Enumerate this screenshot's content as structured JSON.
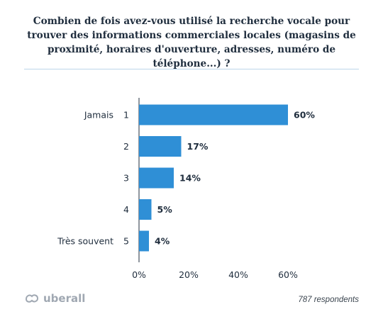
{
  "title": "Combien de fois avez-vous utilisé la recherche vocale pour trouver des informations commerciales locales (magasins de proximité, horaires d'ouverture, adresses, numéro de téléphone...) ?",
  "brand": {
    "name": "uberall",
    "icon": "uberall-logo-icon"
  },
  "footnote": "787 respondents",
  "colors": {
    "bar": "#2f8fd6",
    "axis": "#1f2d3d",
    "divider": "#bcd6ea"
  },
  "chart_data": {
    "type": "bar",
    "orientation": "horizontal",
    "categories": [
      "1",
      "2",
      "3",
      "4",
      "5"
    ],
    "category_descriptions": [
      "Jamais",
      "",
      "",
      "",
      "Très souvent"
    ],
    "values": [
      60,
      17,
      14,
      5,
      4
    ],
    "value_labels": [
      "60%",
      "17%",
      "14%",
      "5%",
      "4%"
    ],
    "xlim": [
      0,
      60
    ],
    "xticks": [
      0,
      20,
      40,
      60
    ],
    "xtick_labels": [
      "0%",
      "20%",
      "40%",
      "60%"
    ],
    "grid": false
  }
}
